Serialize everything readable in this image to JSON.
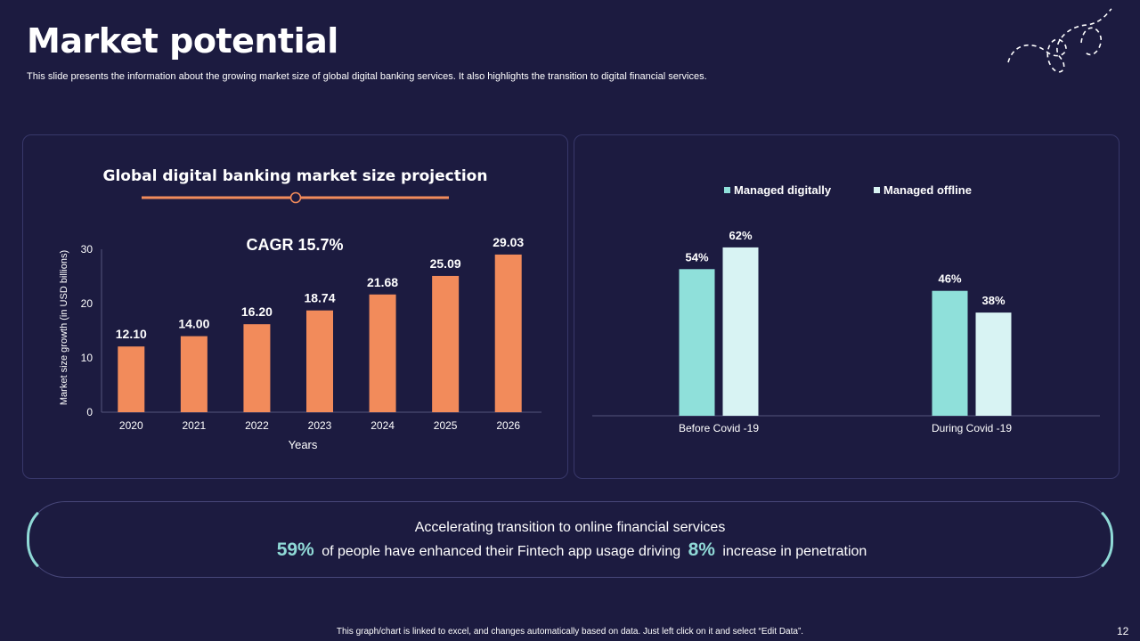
{
  "header": {
    "title": "Market potential",
    "subtitle": "This slide presents the information about the growing market size of global digital banking services. It also highlights the transition to digital financial services."
  },
  "colors": {
    "background": "#1c1b40",
    "bar_orange": "#f28b5b",
    "teal": "#8fe0da",
    "light_teal": "#d8f3f3",
    "accent": "#8fd9d6"
  },
  "chart_data": [
    {
      "type": "bar",
      "title": "Global digital banking market size projection",
      "annotation": "CAGR 15.7%",
      "categories": [
        "2020",
        "2021",
        "2022",
        "2023",
        "2024",
        "2025",
        "2026"
      ],
      "values": [
        12.1,
        14.0,
        16.2,
        18.74,
        21.68,
        25.09,
        29.03
      ],
      "value_labels": [
        "12.10",
        "14.00",
        "16.20",
        "18.74",
        "21.68",
        "25.09",
        "29.03"
      ],
      "xlabel": "Years",
      "ylabel": "Market size growth (in USD billions)",
      "ylim": [
        0,
        30
      ],
      "yticks": [
        "0",
        "10",
        "20",
        "30"
      ],
      "color": "#f28b5b"
    },
    {
      "type": "bar",
      "categories": [
        "Before Covid -19",
        "During Covid -19"
      ],
      "series": [
        {
          "name": "Managed digitally",
          "values": [
            54,
            46
          ],
          "labels": [
            "54%",
            "46%"
          ],
          "color": "#8fe0da"
        },
        {
          "name": "Managed offline",
          "values": [
            62,
            38
          ],
          "labels": [
            "62%",
            "38%"
          ],
          "color": "#d8f3f3"
        }
      ],
      "legend": "top-center",
      "ylim": [
        0,
        100
      ]
    }
  ],
  "banner": {
    "line1": "Accelerating transition to online financial services",
    "stat1": "59%",
    "text1": "of people have enhanced their Fintech app usage driving",
    "stat2": "8%",
    "text2": "increase in penetration"
  },
  "footer": {
    "note": "This graph/chart is linked to excel, and changes automatically based on data. Just left click on it and select “Edit Data”.",
    "page": "12"
  }
}
